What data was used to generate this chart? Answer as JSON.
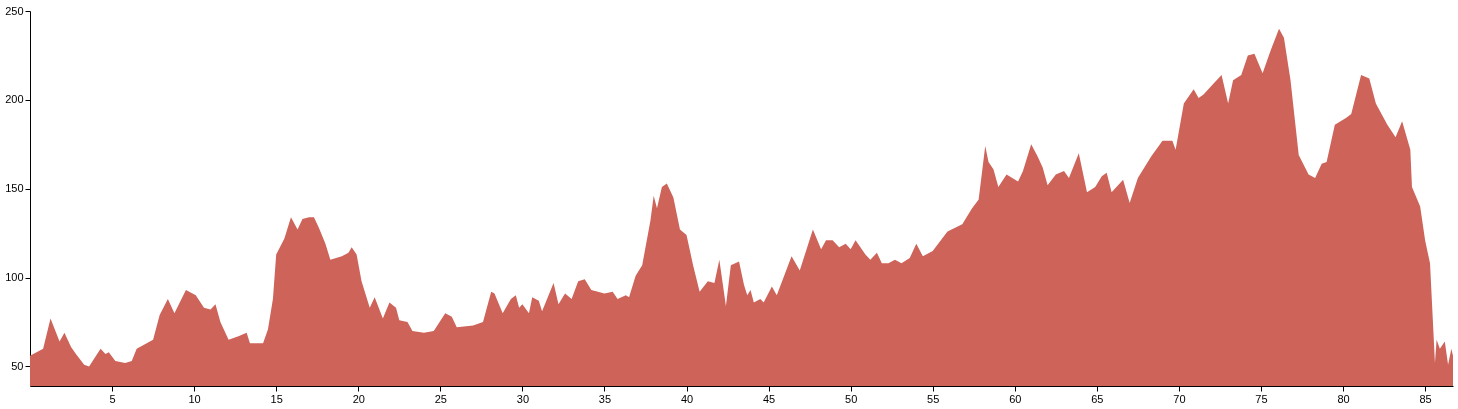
{
  "chart_data": {
    "type": "area",
    "color": "#cd6359",
    "x": [
      0,
      0.8,
      1.25,
      1.8,
      2.1,
      2.5,
      2.8,
      3.3,
      3.6,
      4.3,
      4.6,
      4.8,
      5.2,
      5.8,
      6.2,
      6.5,
      7.5,
      7.9,
      8.4,
      8.8,
      9.5,
      10.1,
      10.6,
      11.0,
      11.3,
      11.6,
      12.1,
      12.7,
      13.2,
      13.4,
      14.2,
      14.5,
      14.8,
      15.0,
      15.5,
      15.9,
      16.3,
      16.6,
      17.0,
      17.3,
      17.6,
      18.0,
      18.3,
      19.0,
      19.4,
      19.6,
      19.9,
      20.2,
      20.7,
      21.0,
      21.5,
      21.9,
      22.3,
      22.5,
      23.0,
      23.3,
      24.0,
      24.6,
      25.3,
      25.7,
      26.0,
      27.0,
      27.6,
      28.1,
      28.3,
      28.8,
      29.3,
      29.6,
      29.8,
      30.0,
      30.4,
      30.6,
      31.0,
      31.2,
      31.9,
      32.2,
      32.6,
      33.0,
      33.4,
      33.8,
      34.2,
      35.0,
      35.5,
      35.8,
      36.3,
      36.5,
      36.9,
      37.3,
      37.8,
      38.0,
      38.2,
      38.5,
      38.8,
      39.2,
      39.6,
      40.0,
      40.4,
      40.8,
      41.3,
      41.7,
      42.0,
      42.4,
      42.7,
      43.2,
      43.5,
      43.7,
      43.9,
      44.1,
      44.5,
      44.7,
      45.2,
      45.5,
      46.4,
      46.9,
      47.7,
      48.2,
      48.5,
      48.9,
      49.3,
      49.7,
      50.0,
      50.3,
      50.9,
      51.2,
      51.6,
      51.9,
      52.3,
      52.7,
      53.1,
      53.6,
      54.0,
      54.4,
      55.0,
      55.9,
      56.8,
      57.4,
      57.8,
      58.2,
      58.4,
      58.7,
      59.0,
      59.5,
      60.2,
      60.5,
      61.0,
      61.4,
      61.7,
      62.0,
      62.5,
      63.0,
      63.3,
      63.9,
      64.4,
      64.9,
      65.3,
      65.6,
      65.9,
      66.6,
      67.0,
      67.5,
      68.3,
      69.0,
      69.6,
      69.8,
      70.3,
      70.9,
      71.2,
      71.5,
      72.1,
      72.6,
      73.0,
      73.3,
      73.8,
      74.2,
      74.6,
      75.1,
      75.6,
      76.1,
      76.4,
      76.8,
      77.3,
      77.9,
      78.3,
      78.7,
      79.0,
      79.5,
      80.2,
      80.5,
      81.1,
      81.6,
      82.0,
      82.7,
      83.2,
      83.6,
      84.1,
      84.2,
      84.7,
      85.0,
      85.3,
      85.6,
      85.7,
      85.9,
      86.2,
      86.4,
      86.6,
      86.7
    ],
    "values": [
      56,
      60,
      77,
      64,
      69,
      61,
      57,
      51,
      50,
      60,
      57,
      58,
      53,
      52,
      53,
      60,
      65,
      79,
      88,
      80,
      93,
      90,
      83,
      82,
      85,
      75,
      65,
      67,
      69,
      63,
      63,
      71,
      88,
      113,
      122,
      134,
      127,
      133,
      134,
      134,
      128,
      119,
      110,
      112,
      114,
      117,
      113,
      98,
      83,
      89,
      77,
      86,
      83,
      76,
      75,
      70,
      69,
      70,
      80,
      78,
      72,
      73,
      75,
      92,
      91,
      80,
      88,
      90,
      83,
      85,
      80,
      89,
      87,
      81,
      97,
      85,
      91,
      88,
      98,
      99,
      93,
      91,
      92,
      88,
      90,
      89,
      101,
      107,
      132,
      146,
      139,
      151,
      153,
      145,
      127,
      124,
      107,
      92,
      98,
      97,
      110,
      84,
      107,
      109,
      96,
      90,
      93,
      86,
      88,
      86,
      95,
      90,
      112,
      104,
      127,
      116,
      121,
      121,
      117,
      119,
      116,
      121,
      113,
      110,
      114,
      108,
      108,
      110,
      108,
      111,
      119,
      112,
      115,
      126,
      130,
      139,
      144,
      174,
      165,
      161,
      151,
      158,
      154,
      160,
      175,
      168,
      162,
      152,
      158,
      160,
      156,
      170,
      148,
      151,
      157,
      159,
      148,
      155,
      142,
      156,
      168,
      177,
      177,
      172,
      198,
      206,
      201,
      203,
      209,
      214,
      198,
      211,
      214,
      225,
      226,
      215,
      228,
      240,
      235,
      211,
      169,
      158,
      156,
      164,
      165,
      186,
      190,
      192,
      214,
      212,
      198,
      186,
      179,
      188,
      172,
      151,
      140,
      121,
      108,
      52,
      65,
      60,
      64,
      51,
      60,
      56
    ],
    "xlim": [
      0,
      86.7
    ],
    "xticks": [
      5,
      10,
      15,
      20,
      25,
      30,
      35,
      40,
      45,
      50,
      55,
      60,
      65,
      70,
      75,
      80,
      85
    ],
    "ylim": [
      39,
      250
    ],
    "yticks": [
      50,
      100,
      150,
      200,
      250
    ],
    "grid": false
  }
}
